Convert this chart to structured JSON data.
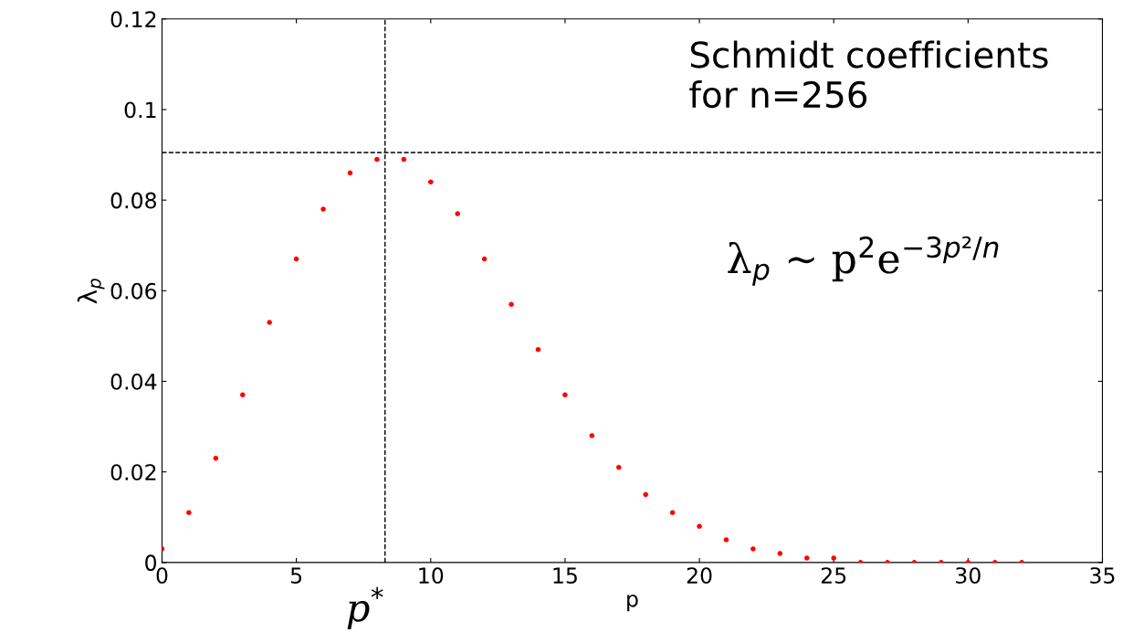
{
  "chart_data": {
    "type": "scatter",
    "xlabel": "p",
    "ylabel": "λ$_{p}$",
    "x": [
      0,
      1,
      2,
      3,
      4,
      5,
      6,
      7,
      8,
      9,
      10,
      11,
      12,
      13,
      14,
      15,
      16,
      17,
      18,
      19,
      20,
      21,
      22,
      23,
      24,
      25,
      26,
      27,
      28,
      29,
      30,
      31,
      32
    ],
    "series": [
      {
        "color": "#ff0000",
        "values": [
          0.003,
          0.011,
          0.023,
          0.037,
          0.053,
          0.067,
          0.078,
          0.086,
          0.089,
          0.089,
          0.084,
          0.077,
          0.067,
          0.057,
          0.047,
          0.037,
          0.028,
          0.021,
          0.015,
          0.011,
          0.008,
          0.005,
          0.003,
          0.002,
          0.001,
          0.001,
          0.0,
          0.0,
          0.0,
          0.0,
          0.0,
          0.0,
          0.0
        ]
      }
    ],
    "marker": "circle",
    "xlim": [
      0,
      35
    ],
    "xticks": [
      0,
      5,
      10,
      15,
      20,
      25,
      30,
      35
    ],
    "ylim": [
      0,
      0.12
    ],
    "yticks": [
      0,
      0.02,
      0.04,
      0.06,
      0.08,
      0.1,
      0.12
    ],
    "ref_lines": [
      {
        "axis": "x",
        "value": 8.3,
        "label": "p$^{*}$",
        "line_style": "dashed",
        "color": "#000000"
      },
      {
        "axis": "y",
        "value": 0.0905,
        "line_style": "dashed",
        "color": "#000000"
      }
    ],
    "annotations": [
      "Schmidt coefficients\nfor n=256",
      "λ$_{p}$ ∼ p$^{2}$e$^{−3p²/n}$"
    ],
    "grid": false,
    "legend": false
  }
}
